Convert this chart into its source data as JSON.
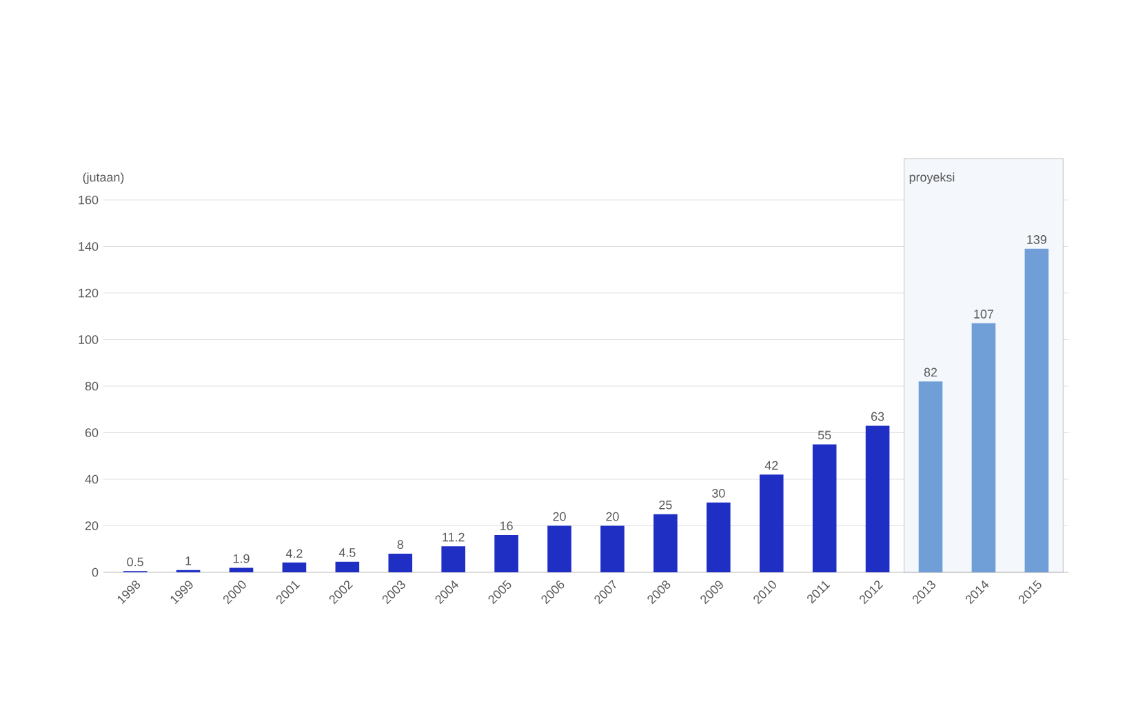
{
  "chart_data": {
    "type": "bar",
    "ylabel": "(jutaan)",
    "categories": [
      "1998",
      "1999",
      "2000",
      "2001",
      "2002",
      "2003",
      "2004",
      "2005",
      "2006",
      "2007",
      "2008",
      "2009",
      "2010",
      "2011",
      "2012",
      "2013",
      "2014",
      "2015"
    ],
    "values": [
      0.5,
      1,
      1.9,
      4.2,
      4.5,
      8,
      11.2,
      16,
      20,
      20,
      25,
      30,
      42,
      55,
      63,
      82,
      107,
      139
    ],
    "colors": [
      "#1f2fc4",
      "#1f2fc4",
      "#1f2fc4",
      "#1f2fc4",
      "#1f2fc4",
      "#1f2fc4",
      "#1f2fc4",
      "#1f2fc4",
      "#1f2fc4",
      "#1f2fc4",
      "#1f2fc4",
      "#1f2fc4",
      "#1f2fc4",
      "#1f2fc4",
      "#1f2fc4",
      "#6f9fd6",
      "#6f9fd6",
      "#6f9fd6"
    ],
    "ylim": [
      0,
      160
    ],
    "yticks": [
      0,
      20,
      40,
      60,
      80,
      100,
      120,
      140,
      160
    ],
    "grid": "y",
    "data_labels": true,
    "bands": [
      {
        "axis": "x",
        "from": "2013",
        "to": "2015",
        "label": "proyeksi",
        "color": "#f4f7fb"
      }
    ]
  }
}
